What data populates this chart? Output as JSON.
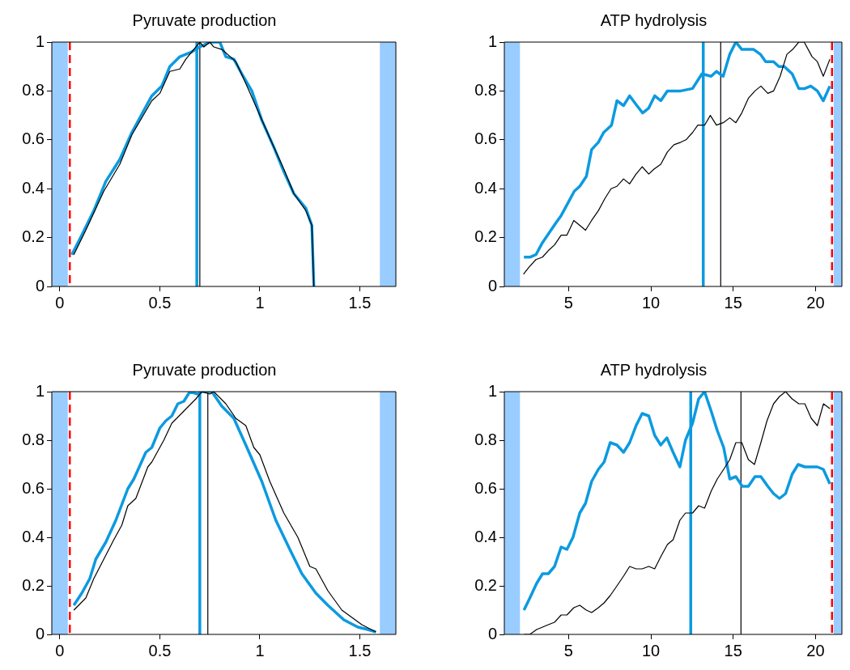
{
  "chart_data": [
    {
      "type": "line",
      "title": "Pyruvate production",
      "xlim": [
        -0.04,
        1.68
      ],
      "xticks": [
        0,
        0.5,
        1,
        1.5
      ],
      "ylim": [
        0,
        1
      ],
      "yticks": [
        0,
        0.2,
        0.4,
        0.6,
        0.8,
        1
      ],
      "grid": false,
      "legend": false,
      "marker": "none",
      "series": [
        {
          "color": "#000000",
          "x": [
            0.07,
            0.13,
            0.22,
            0.3,
            0.36,
            0.46,
            0.5,
            0.55,
            0.6,
            0.63,
            0.7,
            0.72,
            0.75,
            0.77,
            0.81,
            0.88,
            0.93,
            1.0,
            1.07,
            1.12,
            1.17,
            1.23,
            1.26,
            1.27
          ],
          "values": [
            0.13,
            0.23,
            0.39,
            0.5,
            0.62,
            0.76,
            0.79,
            0.88,
            0.89,
            0.93,
            1.0,
            0.98,
            1.0,
            0.98,
            0.97,
            0.92,
            0.83,
            0.7,
            0.57,
            0.48,
            0.38,
            0.31,
            0.25,
            0
          ]
        },
        {
          "color": "#0c9ae0",
          "x": [
            0.06,
            0.11,
            0.17,
            0.23,
            0.3,
            0.36,
            0.46,
            0.51,
            0.55,
            0.6,
            0.66,
            0.7,
            0.75,
            0.8,
            0.83,
            0.87,
            0.91,
            0.96,
            1.01,
            1.07,
            1.12,
            1.17,
            1.23,
            1.26,
            1.27
          ],
          "values": [
            0.13,
            0.21,
            0.31,
            0.43,
            0.52,
            0.63,
            0.78,
            0.82,
            0.9,
            0.94,
            0.96,
            0.98,
            1.0,
            1.0,
            0.94,
            0.93,
            0.87,
            0.8,
            0.68,
            0.57,
            0.47,
            0.38,
            0.32,
            0.25,
            0
          ]
        }
      ],
      "bands": [
        {
          "axis": "x",
          "from": -0.04,
          "to": 0.04,
          "color": "#99ccff"
        },
        {
          "axis": "x",
          "from": 1.6,
          "to": 1.68,
          "color": "#99ccff"
        }
      ],
      "ref_lines": [
        {
          "axis": "x",
          "value": 0.05,
          "color": "#ff0000",
          "line_style": "dashed"
        },
        {
          "axis": "x",
          "value": 0.685,
          "color": "#0c9ae0",
          "line_style": "solid"
        },
        {
          "axis": "x",
          "value": 0.7,
          "color": "#000000",
          "line_style": "solid"
        }
      ]
    },
    {
      "type": "line",
      "title": "ATP hydrolysis",
      "xlim": [
        1.1,
        21.6
      ],
      "xticks": [
        5,
        10,
        15,
        20
      ],
      "ylim": [
        0,
        1
      ],
      "yticks": [
        0,
        0.2,
        0.4,
        0.6,
        0.8,
        1
      ],
      "grid": false,
      "legend": false,
      "marker": "none",
      "series": [
        {
          "color": "#000000",
          "x": [
            2.26,
            2.61,
            3.02,
            3.42,
            3.82,
            4.15,
            4.55,
            4.9,
            5.32,
            5.68,
            6.03,
            6.4,
            6.81,
            7.21,
            7.58,
            7.94,
            8.34,
            8.71,
            9.1,
            9.47,
            9.87,
            10.19,
            10.6,
            11.0,
            11.4,
            11.81,
            12.13,
            12.53,
            12.85,
            13.26,
            13.61,
            13.98,
            14.39,
            14.79,
            15.16,
            15.52,
            15.92,
            16.32,
            16.68,
            17.1,
            17.45,
            17.85,
            18.26,
            18.61,
            18.98,
            19.31,
            19.79,
            20.11,
            20.47,
            20.87
          ],
          "values": [
            0.05,
            0.08,
            0.11,
            0.12,
            0.15,
            0.17,
            0.21,
            0.21,
            0.27,
            0.25,
            0.23,
            0.27,
            0.31,
            0.36,
            0.4,
            0.41,
            0.44,
            0.42,
            0.46,
            0.49,
            0.46,
            0.48,
            0.5,
            0.55,
            0.58,
            0.59,
            0.6,
            0.63,
            0.66,
            0.66,
            0.7,
            0.66,
            0.67,
            0.69,
            0.67,
            0.71,
            0.77,
            0.8,
            0.82,
            0.79,
            0.8,
            0.86,
            0.95,
            0.97,
            1.0,
            1.0,
            0.94,
            0.92,
            0.86,
            0.93
          ]
        },
        {
          "color": "#0c9ae0",
          "x": [
            2.29,
            2.65,
            3.02,
            3.42,
            4.23,
            4.55,
            4.95,
            5.35,
            5.68,
            6.08,
            6.4,
            6.81,
            7.13,
            7.61,
            7.94,
            8.34,
            8.71,
            9.15,
            9.5,
            9.87,
            10.23,
            10.6,
            11.0,
            11.81,
            12.53,
            13.1,
            13.66,
            13.98,
            14.39,
            14.79,
            15.16,
            15.52,
            16.24,
            16.65,
            16.97,
            17.45,
            17.77,
            18.1,
            18.58,
            18.98,
            19.35,
            19.71,
            20.11,
            20.47,
            20.87
          ],
          "values": [
            0.12,
            0.12,
            0.13,
            0.18,
            0.26,
            0.29,
            0.34,
            0.39,
            0.41,
            0.45,
            0.56,
            0.59,
            0.63,
            0.66,
            0.76,
            0.74,
            0.78,
            0.74,
            0.71,
            0.73,
            0.78,
            0.76,
            0.8,
            0.8,
            0.81,
            0.87,
            0.86,
            0.88,
            0.86,
            0.95,
            1.0,
            0.97,
            0.97,
            0.95,
            0.92,
            0.92,
            0.9,
            0.9,
            0.87,
            0.81,
            0.81,
            0.82,
            0.8,
            0.76,
            0.82
          ]
        }
      ],
      "bands": [
        {
          "axis": "x",
          "from": 1.1,
          "to": 2.05,
          "color": "#99ccff"
        },
        {
          "axis": "x",
          "from": 21.1,
          "to": 21.6,
          "color": "#99ccff"
        }
      ],
      "ref_lines": [
        {
          "axis": "x",
          "value": 21.0,
          "color": "#ff0000",
          "line_style": "dashed"
        },
        {
          "axis": "x",
          "value": 13.18,
          "color": "#0c9ae0",
          "line_style": "solid"
        },
        {
          "axis": "x",
          "value": 14.24,
          "color": "#000000",
          "line_style": "solid"
        }
      ]
    },
    {
      "type": "line",
      "title": "Pyruvate production",
      "xlim": [
        -0.04,
        1.68
      ],
      "xticks": [
        0,
        0.5,
        1,
        1.5
      ],
      "ylim": [
        0,
        1
      ],
      "yticks": [
        0,
        0.2,
        0.4,
        0.6,
        0.8,
        1
      ],
      "grid": false,
      "legend": false,
      "marker": "none",
      "series": [
        {
          "color": "#000000",
          "x": [
            0.07,
            0.13,
            0.17,
            0.22,
            0.27,
            0.31,
            0.34,
            0.38,
            0.44,
            0.46,
            0.52,
            0.56,
            0.62,
            0.68,
            0.71,
            0.75,
            0.77,
            0.83,
            0.88,
            0.93,
            0.97,
            1.0,
            1.05,
            1.12,
            1.19,
            1.25,
            1.28,
            1.34,
            1.41,
            1.46,
            1.51,
            1.58
          ],
          "values": [
            0.1,
            0.15,
            0.23,
            0.31,
            0.39,
            0.45,
            0.53,
            0.56,
            0.69,
            0.71,
            0.8,
            0.87,
            0.92,
            0.97,
            1.0,
            0.99,
            1.0,
            0.95,
            0.89,
            0.86,
            0.77,
            0.74,
            0.63,
            0.5,
            0.4,
            0.28,
            0.27,
            0.18,
            0.1,
            0.07,
            0.04,
            0.01
          ]
        },
        {
          "color": "#0c9ae0",
          "x": [
            0.07,
            0.11,
            0.15,
            0.18,
            0.23,
            0.28,
            0.34,
            0.37,
            0.43,
            0.46,
            0.5,
            0.53,
            0.56,
            0.59,
            0.62,
            0.65,
            0.69,
            0.71,
            0.76,
            0.81,
            0.87,
            0.93,
            1.01,
            1.08,
            1.15,
            1.21,
            1.28,
            1.34,
            1.42,
            1.49,
            1.54,
            1.58
          ],
          "values": [
            0.12,
            0.17,
            0.23,
            0.31,
            0.38,
            0.47,
            0.6,
            0.64,
            0.75,
            0.77,
            0.85,
            0.88,
            0.9,
            0.95,
            0.96,
            1.0,
            0.99,
            1.0,
            1.0,
            0.94,
            0.89,
            0.78,
            0.63,
            0.47,
            0.35,
            0.25,
            0.17,
            0.12,
            0.06,
            0.03,
            0.02,
            0.01
          ]
        }
      ],
      "bands": [
        {
          "axis": "x",
          "from": -0.04,
          "to": 0.04,
          "color": "#99ccff"
        },
        {
          "axis": "x",
          "from": 1.6,
          "to": 1.68,
          "color": "#99ccff"
        }
      ],
      "ref_lines": [
        {
          "axis": "x",
          "value": 0.05,
          "color": "#ff0000",
          "line_style": "dashed"
        },
        {
          "axis": "x",
          "value": 0.7,
          "color": "#0c9ae0",
          "line_style": "solid"
        },
        {
          "axis": "x",
          "value": 0.74,
          "color": "#000000",
          "line_style": "solid"
        }
      ]
    },
    {
      "type": "line",
      "title": "ATP hydrolysis",
      "xlim": [
        1.1,
        21.6
      ],
      "xticks": [
        5,
        10,
        15,
        20
      ],
      "ylim": [
        0,
        1
      ],
      "yticks": [
        0,
        0.2,
        0.4,
        0.6,
        0.8,
        1
      ],
      "grid": false,
      "legend": false,
      "marker": "none",
      "series": [
        {
          "color": "#000000",
          "x": [
            2.29,
            2.65,
            3.06,
            3.42,
            3.77,
            4.15,
            4.55,
            4.9,
            5.32,
            5.68,
            6.08,
            6.4,
            6.81,
            7.16,
            7.53,
            7.94,
            8.34,
            8.71,
            9.1,
            9.47,
            9.87,
            10.23,
            10.6,
            11.0,
            11.35,
            11.76,
            12.1,
            12.53,
            12.9,
            13.26,
            13.66,
            14.03,
            14.42,
            14.79,
            15.16,
            15.52,
            15.92,
            16.29,
            16.68,
            17.05,
            17.45,
            17.81,
            18.18,
            18.58,
            18.98,
            19.35,
            19.74,
            20.11,
            20.48,
            20.87
          ],
          "values": [
            0,
            0,
            0.02,
            0.03,
            0.04,
            0.05,
            0.08,
            0.08,
            0.11,
            0.12,
            0.1,
            0.09,
            0.11,
            0.13,
            0.16,
            0.2,
            0.24,
            0.28,
            0.27,
            0.27,
            0.28,
            0.27,
            0.32,
            0.37,
            0.39,
            0.47,
            0.5,
            0.5,
            0.53,
            0.52,
            0.59,
            0.64,
            0.68,
            0.72,
            0.79,
            0.79,
            0.72,
            0.7,
            0.79,
            0.88,
            0.95,
            0.98,
            1.0,
            0.97,
            0.95,
            0.95,
            0.89,
            0.86,
            0.95,
            0.93
          ]
        },
        {
          "color": "#0c9ae0",
          "x": [
            2.29,
            2.65,
            3.06,
            3.42,
            3.77,
            4.15,
            4.55,
            4.9,
            5.27,
            5.68,
            6.03,
            6.4,
            6.81,
            7.16,
            7.53,
            7.94,
            8.34,
            8.71,
            9.1,
            9.47,
            9.87,
            10.23,
            10.6,
            10.97,
            11.35,
            11.76,
            12.1,
            12.53,
            12.9,
            13.26,
            13.66,
            14.03,
            14.42,
            14.79,
            15.16,
            15.55,
            15.92,
            16.32,
            16.68,
            17.1,
            17.45,
            17.81,
            18.18,
            18.58,
            18.94,
            19.35,
            19.71,
            20.11,
            20.47,
            20.87
          ],
          "values": [
            0.1,
            0.15,
            0.21,
            0.25,
            0.25,
            0.28,
            0.36,
            0.35,
            0.4,
            0.5,
            0.54,
            0.63,
            0.68,
            0.71,
            0.79,
            0.78,
            0.75,
            0.79,
            0.86,
            0.91,
            0.9,
            0.82,
            0.78,
            0.81,
            0.75,
            0.69,
            0.8,
            0.87,
            0.97,
            1.0,
            0.92,
            0.84,
            0.77,
            0.64,
            0.65,
            0.61,
            0.61,
            0.65,
            0.65,
            0.61,
            0.58,
            0.56,
            0.58,
            0.66,
            0.7,
            0.69,
            0.69,
            0.69,
            0.68,
            0.62
          ]
        }
      ],
      "bands": [
        {
          "axis": "x",
          "from": 1.1,
          "to": 2.05,
          "color": "#99ccff"
        },
        {
          "axis": "x",
          "from": 21.1,
          "to": 21.6,
          "color": "#99ccff"
        }
      ],
      "ref_lines": [
        {
          "axis": "x",
          "value": 21.0,
          "color": "#ff0000",
          "line_style": "dashed"
        },
        {
          "axis": "x",
          "value": 12.42,
          "color": "#0c9ae0",
          "line_style": "solid"
        },
        {
          "axis": "x",
          "value": 15.47,
          "color": "#000000",
          "line_style": "solid"
        }
      ]
    }
  ]
}
